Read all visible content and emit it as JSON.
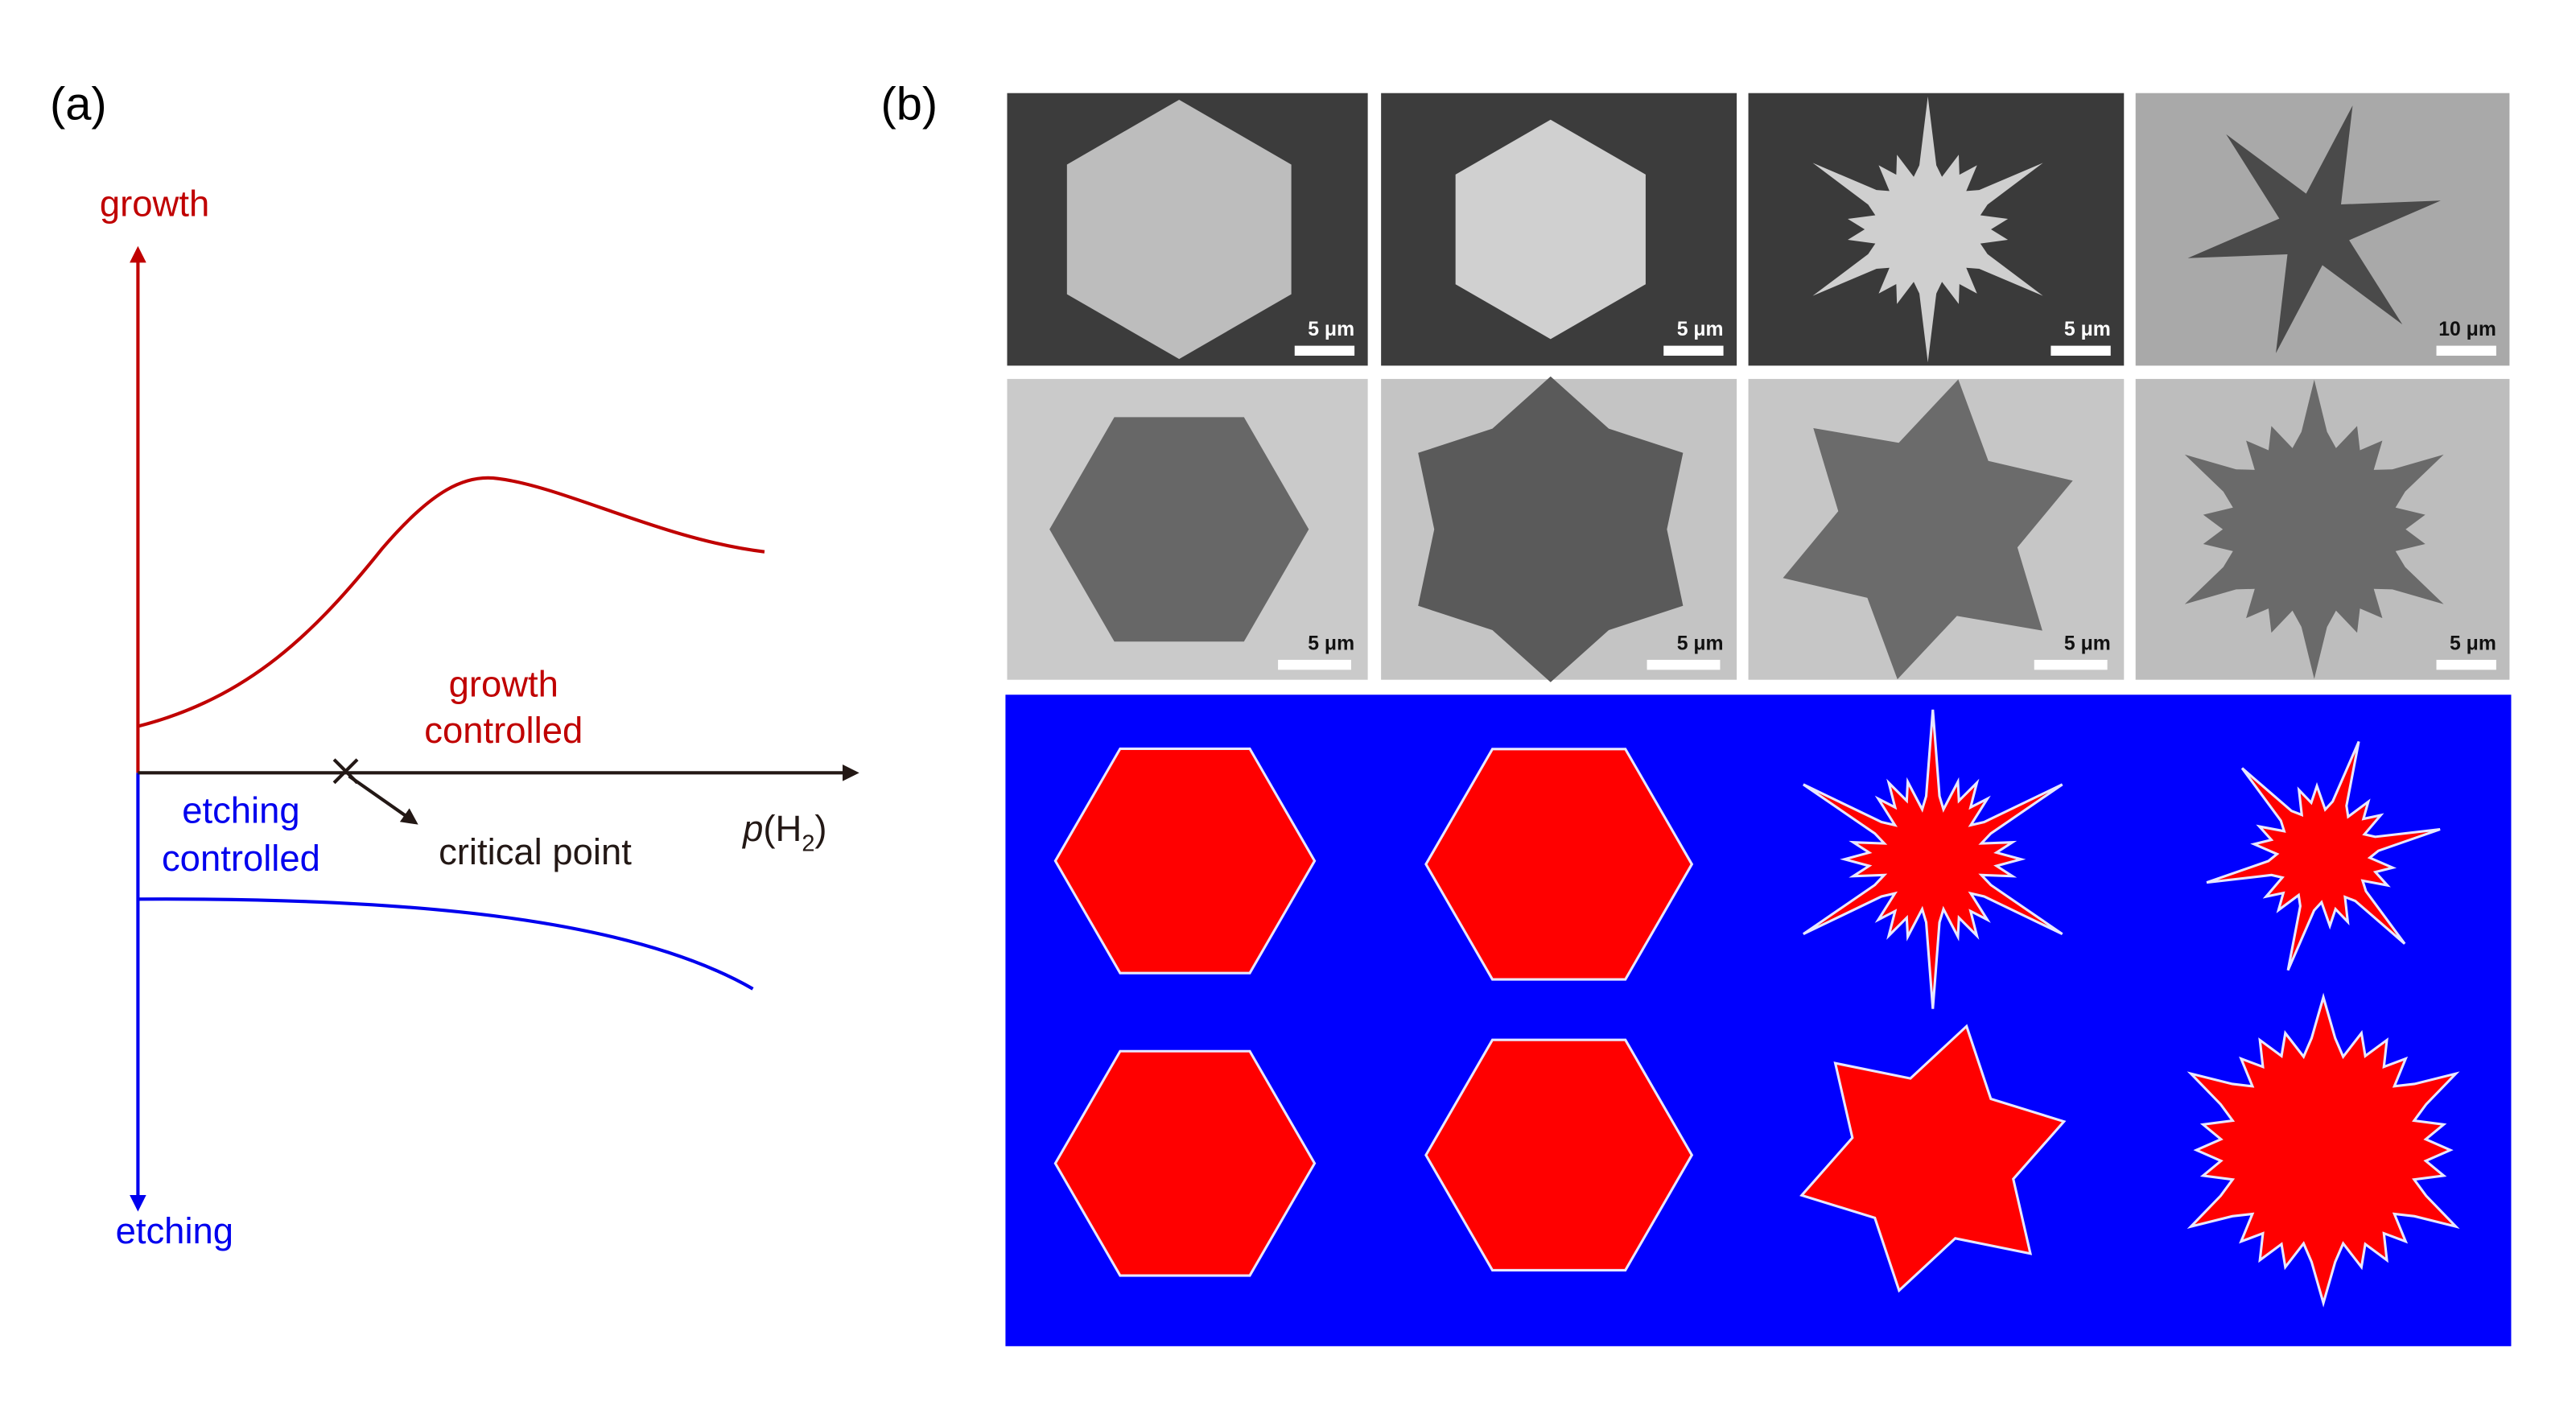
{
  "panel_a": {
    "label": "(a)",
    "y_top_label": "growth",
    "y_bottom_label": "etching",
    "x_label": {
      "p": "p",
      "open": "(H",
      "sub": "2",
      "close": ")"
    },
    "growth_region": [
      "growth",
      "controlled"
    ],
    "etching_region": [
      "etching",
      "controlled"
    ],
    "critical_point": "critical point"
  },
  "panel_b": {
    "label": "(b)",
    "scale_bars": [
      [
        "5 μm",
        "5 μm",
        "5 μm",
        "10 μm"
      ],
      [
        "5 μm",
        "5 μm",
        "5 μm",
        "5 μm"
      ]
    ]
  }
}
